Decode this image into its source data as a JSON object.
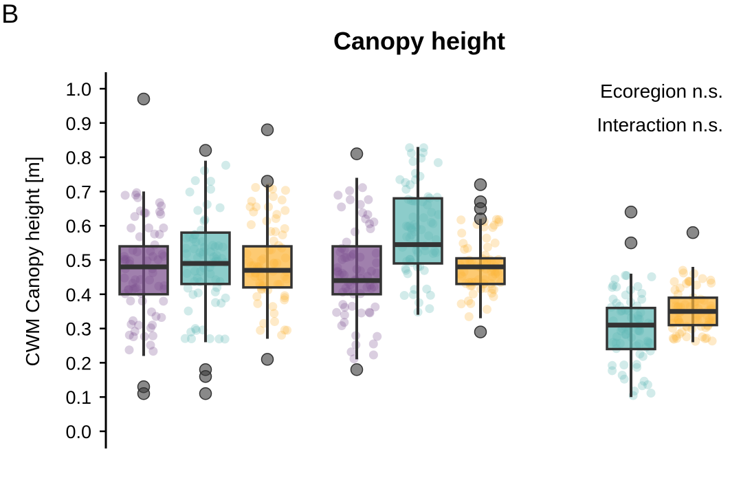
{
  "panel_label": "B",
  "chart_data": {
    "type": "box",
    "title": "Canopy height",
    "ylabel": "CWM Canopy height [m]",
    "xlabel": "",
    "ylim": [
      0.0,
      1.0
    ],
    "yticks": [
      "0.0",
      "0.1",
      "0.2",
      "0.3",
      "0.4",
      "0.5",
      "0.6",
      "0.7",
      "0.8",
      "0.9",
      "1.0"
    ],
    "grid": false,
    "annotations": [
      "Ecoregion n.s.",
      "Interaction n.s."
    ],
    "colors": {
      "purple": "#7b4f8e",
      "teal": "#5fb8b5",
      "orange": "#fcb53b",
      "line": "#333333"
    },
    "groups": [
      {
        "boxes": [
          {
            "color": "purple",
            "min": 0.22,
            "q1": 0.4,
            "median": 0.48,
            "q3": 0.54,
            "max": 0.7,
            "outliers": [
              0.97,
              0.13,
              0.11
            ]
          },
          {
            "color": "teal",
            "min": 0.26,
            "q1": 0.43,
            "median": 0.49,
            "q3": 0.58,
            "max": 0.79,
            "outliers": [
              0.82,
              0.18,
              0.16,
              0.11
            ]
          },
          {
            "color": "orange",
            "min": 0.27,
            "q1": 0.42,
            "median": 0.47,
            "q3": 0.54,
            "max": 0.72,
            "outliers": [
              0.88,
              0.73,
              0.21
            ]
          }
        ]
      },
      {
        "boxes": [
          {
            "color": "purple",
            "min": 0.21,
            "q1": 0.4,
            "median": 0.44,
            "q3": 0.54,
            "max": 0.74,
            "outliers": [
              0.81,
              0.18
            ]
          },
          {
            "color": "teal",
            "min": 0.34,
            "q1": 0.49,
            "median": 0.545,
            "q3": 0.68,
            "max": 0.83,
            "outliers": []
          },
          {
            "color": "orange",
            "min": 0.33,
            "q1": 0.43,
            "median": 0.48,
            "q3": 0.505,
            "max": 0.62,
            "outliers": [
              0.72,
              0.67,
              0.65,
              0.62,
              0.29
            ]
          }
        ]
      },
      {
        "boxes": [
          {
            "color": "teal",
            "min": 0.1,
            "q1": 0.24,
            "median": 0.31,
            "q3": 0.36,
            "max": 0.46,
            "outliers": [
              0.64,
              0.55
            ]
          },
          {
            "color": "orange",
            "min": 0.26,
            "q1": 0.31,
            "median": 0.35,
            "q3": 0.39,
            "max": 0.48,
            "outliers": [
              0.58
            ]
          }
        ]
      }
    ]
  }
}
